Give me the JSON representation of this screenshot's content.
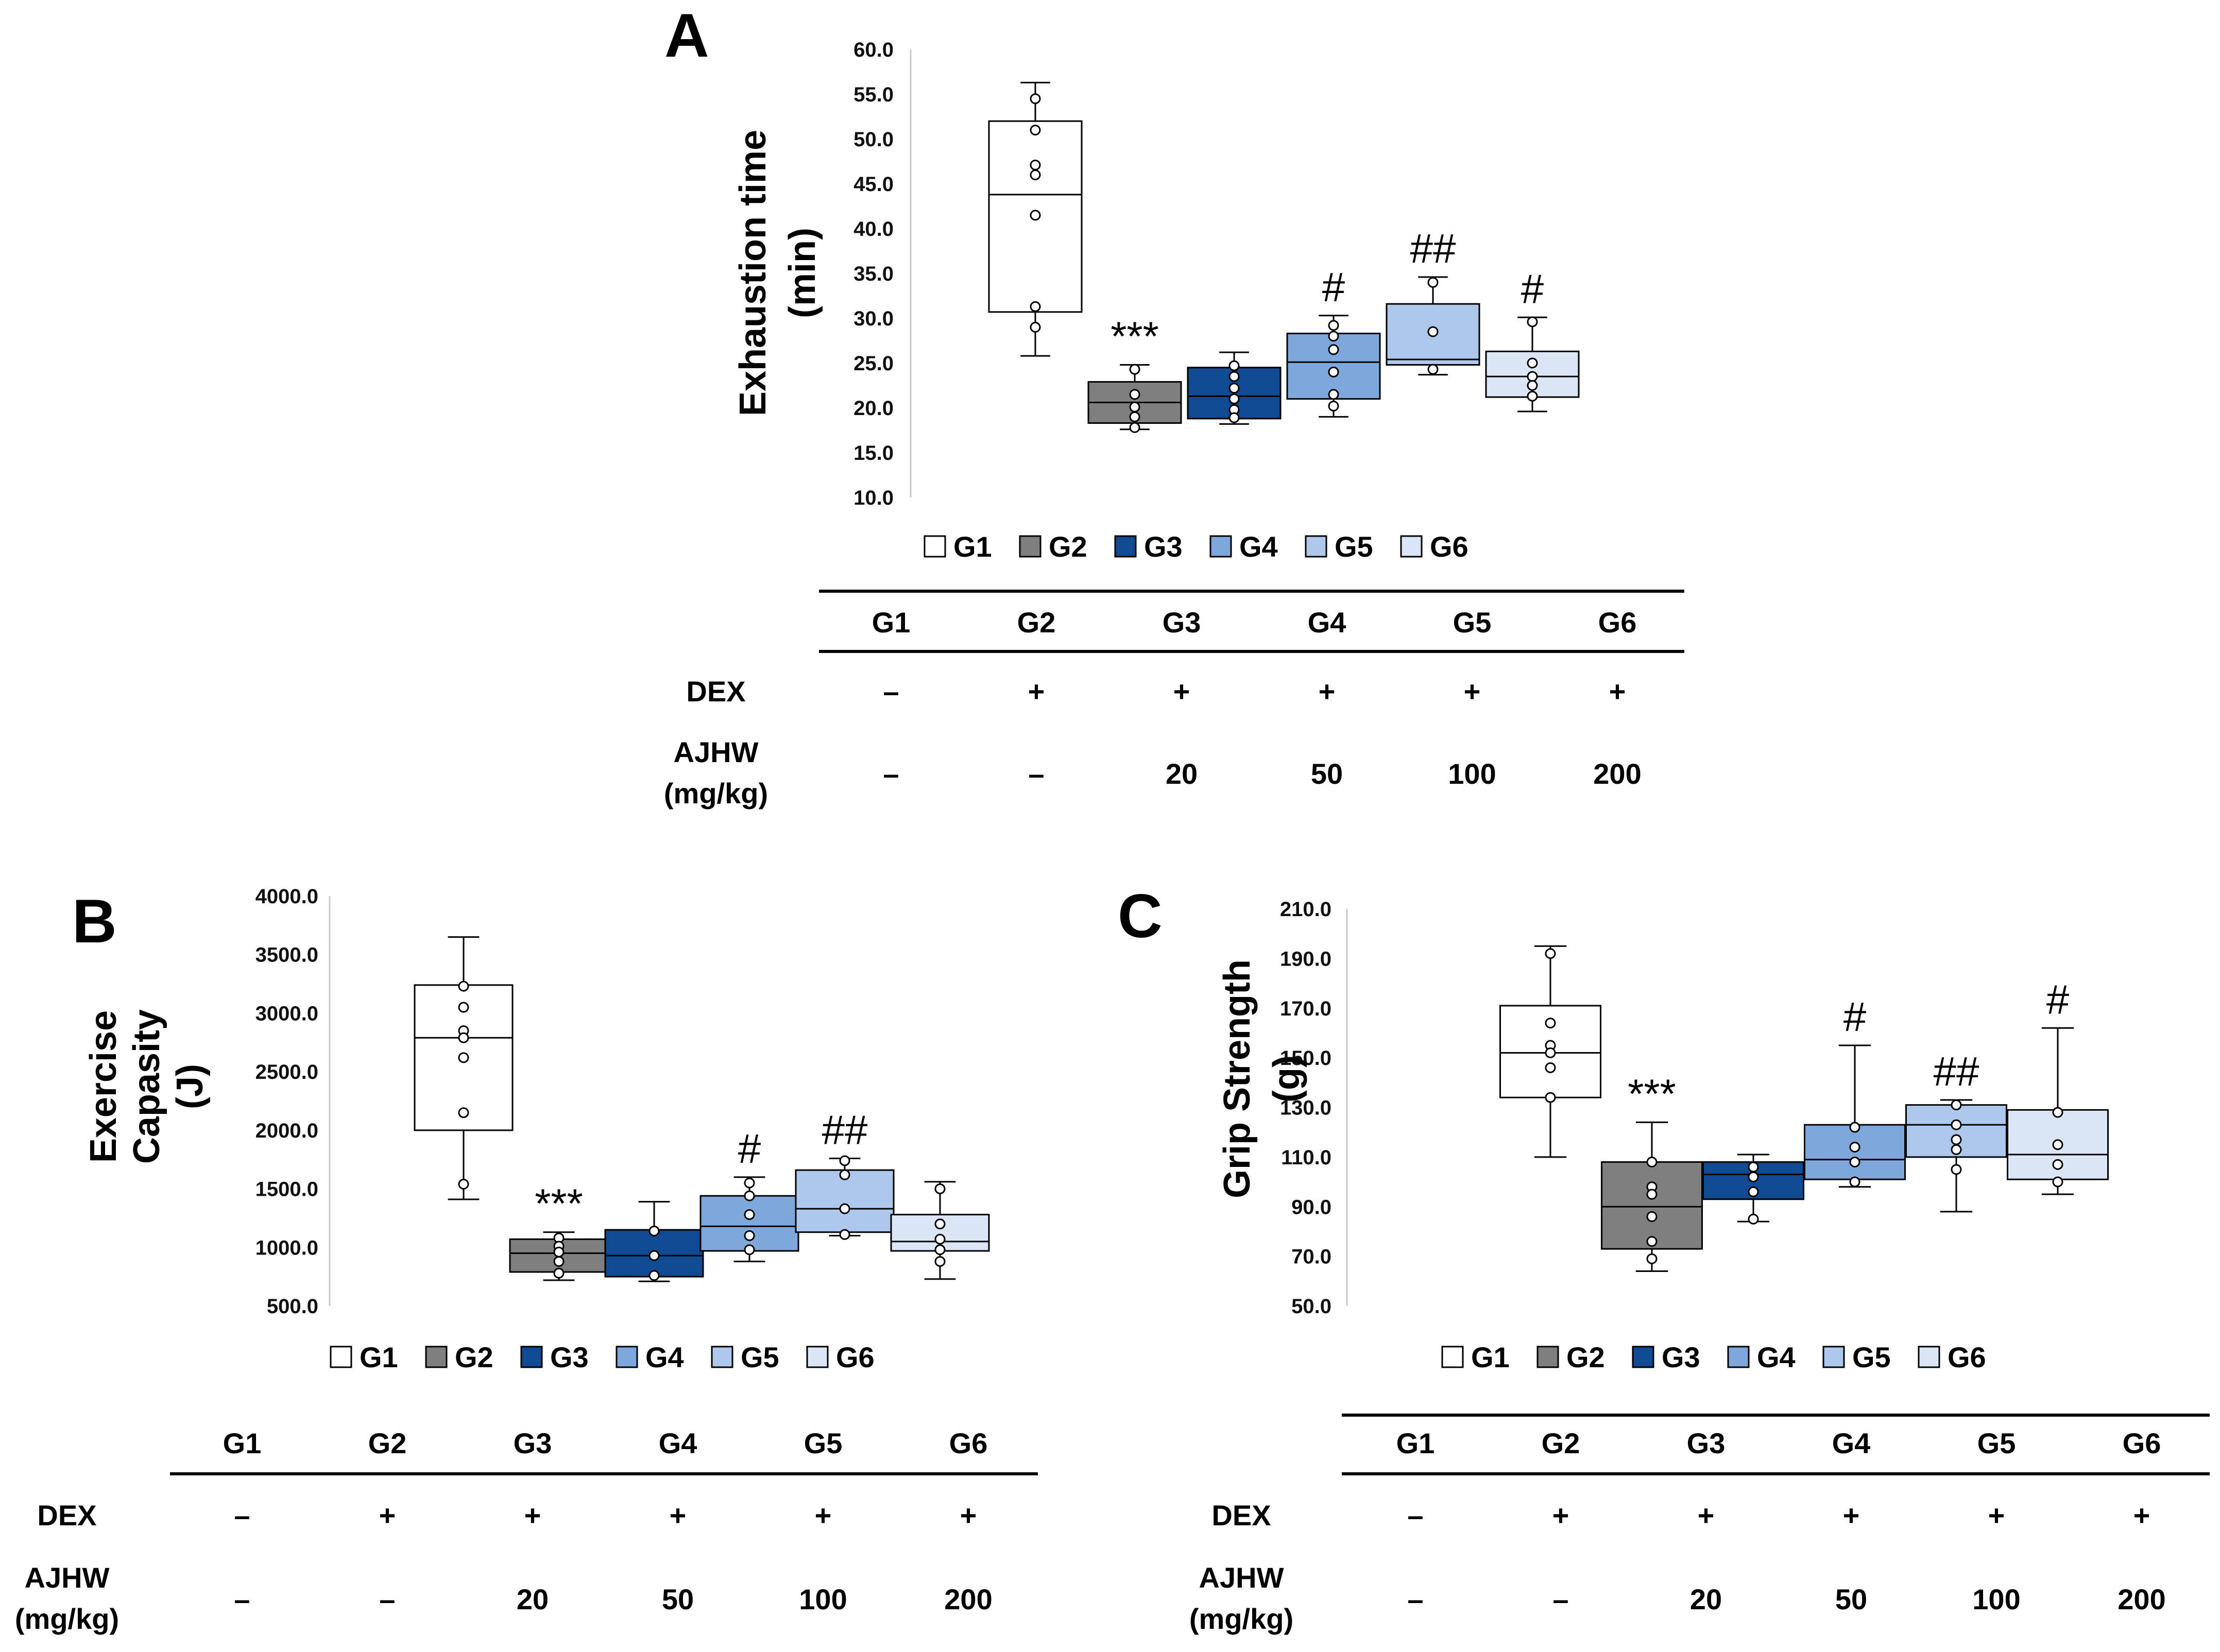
{
  "legend": [
    "G1",
    "G2",
    "G3",
    "G4",
    "G5",
    "G6"
  ],
  "group_colors": [
    "#ffffff",
    "#7f7f7f",
    "#0f4a92",
    "#7ea7dc",
    "#aec8eb",
    "#dae6f6"
  ],
  "chart_data": [
    {
      "id": "A",
      "type": "box",
      "panel_label": "A",
      "ylabel_lines": [
        "Exhaustion time",
        "(min)"
      ],
      "ylim": [
        10,
        60
      ],
      "yticks": [
        "10.0",
        "15.0",
        "20.0",
        "25.0",
        "30.0",
        "35.0",
        "40.0",
        "45.0",
        "50.0",
        "55.0",
        "60.0"
      ],
      "categories": [
        "G1",
        "G2",
        "G3",
        "G4",
        "G5",
        "G6"
      ],
      "boxes": [
        {
          "group": "G1",
          "min": 25.8,
          "q1": 30.7,
          "median": 43.8,
          "q3": 52.0,
          "max": 56.3,
          "points": [
            54.5,
            51.0,
            47.1,
            46.0,
            41.5,
            31.3,
            29.0
          ]
        },
        {
          "group": "G2",
          "min": 17.6,
          "q1": 18.3,
          "median": 20.6,
          "q3": 22.9,
          "max": 24.8,
          "points": [
            24.3,
            21.5,
            20.1,
            19.0,
            17.8
          ]
        },
        {
          "group": "G3",
          "min": 18.2,
          "q1": 18.8,
          "median": 21.3,
          "q3": 24.5,
          "max": 26.2,
          "points": [
            24.7,
            23.5,
            22.2,
            21.0,
            19.8,
            18.9
          ]
        },
        {
          "group": "G4",
          "min": 19.0,
          "q1": 21.0,
          "median": 25.1,
          "q3": 28.3,
          "max": 30.3,
          "points": [
            29.2,
            28.0,
            26.5,
            24.0,
            21.5,
            20.2
          ]
        },
        {
          "group": "G5",
          "min": 23.7,
          "q1": 24.8,
          "median": 25.4,
          "q3": 31.6,
          "max": 34.6,
          "points": [
            34.0,
            28.5,
            24.3
          ]
        },
        {
          "group": "G6",
          "min": 19.6,
          "q1": 21.2,
          "median": 23.5,
          "q3": 26.3,
          "max": 30.1,
          "points": [
            29.6,
            25.0,
            23.5,
            22.5,
            21.3
          ]
        }
      ],
      "significance": [
        "",
        "***",
        "",
        "#",
        "##",
        "#"
      ]
    },
    {
      "id": "B",
      "type": "box",
      "panel_label": "B",
      "ylabel_lines": [
        "Exercise",
        "Capasity",
        "(J)"
      ],
      "ylim": [
        500,
        4000
      ],
      "yticks": [
        "500.0",
        "1000.0",
        "1500.0",
        "2000.0",
        "2500.0",
        "3000.0",
        "3500.0",
        "4000.0"
      ],
      "categories": [
        "G1",
        "G2",
        "G3",
        "G4",
        "G5",
        "G6"
      ],
      "boxes": [
        {
          "group": "G1",
          "min": 1410,
          "q1": 2000,
          "median": 2790,
          "q3": 3240,
          "max": 3650,
          "points": [
            3230,
            3050,
            2850,
            2790,
            2620,
            2150,
            1540
          ]
        },
        {
          "group": "G2",
          "min": 720,
          "q1": 790,
          "median": 950,
          "q3": 1070,
          "max": 1130,
          "points": [
            1080,
            1010,
            960,
            880,
            780
          ]
        },
        {
          "group": "G3",
          "min": 710,
          "q1": 750,
          "median": 930,
          "q3": 1150,
          "max": 1390,
          "points": [
            1140,
            930,
            760
          ]
        },
        {
          "group": "G4",
          "min": 880,
          "q1": 970,
          "median": 1180,
          "q3": 1440,
          "max": 1600,
          "points": [
            1550,
            1440,
            1280,
            1100,
            980
          ]
        },
        {
          "group": "G5",
          "min": 1100,
          "q1": 1130,
          "median": 1330,
          "q3": 1660,
          "max": 1760,
          "points": [
            1740,
            1620,
            1330,
            1110
          ]
        },
        {
          "group": "G6",
          "min": 730,
          "q1": 970,
          "median": 1050,
          "q3": 1280,
          "max": 1560,
          "points": [
            1500,
            1200,
            1070,
            980,
            880
          ]
        }
      ],
      "significance": [
        "",
        "***",
        "",
        "#",
        "##",
        ""
      ]
    },
    {
      "id": "C",
      "type": "box",
      "panel_label": "C",
      "ylabel_lines": [
        "Grip Strength",
        "(g)"
      ],
      "ylim": [
        50,
        210
      ],
      "yticks": [
        "50.0",
        "70.0",
        "90.0",
        "110.0",
        "130.0",
        "150.0",
        "170.0",
        "190.0",
        "210.0"
      ],
      "categories": [
        "G1",
        "G2",
        "G3",
        "G4",
        "G5",
        "G6"
      ],
      "boxes": [
        {
          "group": "G1",
          "min": 110,
          "q1": 134,
          "median": 152,
          "q3": 171,
          "max": 195,
          "points": [
            192,
            164,
            155,
            152,
            146,
            134
          ]
        },
        {
          "group": "G2",
          "min": 64,
          "q1": 73,
          "median": 90,
          "q3": 108,
          "max": 124,
          "points": [
            108,
            98,
            95,
            86,
            76,
            69
          ]
        },
        {
          "group": "G3",
          "min": 84,
          "q1": 93,
          "median": 103,
          "q3": 108,
          "max": 111,
          "points": [
            106,
            102,
            96,
            85
          ]
        },
        {
          "group": "G4",
          "min": 98,
          "q1": 101,
          "median": 109,
          "q3": 123,
          "max": 155,
          "points": [
            122,
            114,
            108,
            100
          ]
        },
        {
          "group": "G5",
          "min": 88,
          "q1": 110,
          "median": 123,
          "q3": 131,
          "max": 133,
          "points": [
            131,
            123,
            117,
            113,
            105
          ]
        },
        {
          "group": "G6",
          "min": 95,
          "q1": 101,
          "median": 111,
          "q3": 129,
          "max": 162,
          "points": [
            128,
            115,
            107,
            100
          ]
        }
      ],
      "significance": [
        "",
        "***",
        "",
        "#",
        "##",
        "#"
      ]
    }
  ],
  "table": {
    "groups": [
      "G1",
      "G2",
      "G3",
      "G4",
      "G5",
      "G6"
    ],
    "dex_label": "DEX",
    "dex": [
      "–",
      "+",
      "+",
      "+",
      "+",
      "+"
    ],
    "ajhw_label": [
      "AJHW",
      "(mg/kg)"
    ],
    "ajhw": [
      "–",
      "–",
      "20",
      "50",
      "100",
      "200"
    ]
  }
}
